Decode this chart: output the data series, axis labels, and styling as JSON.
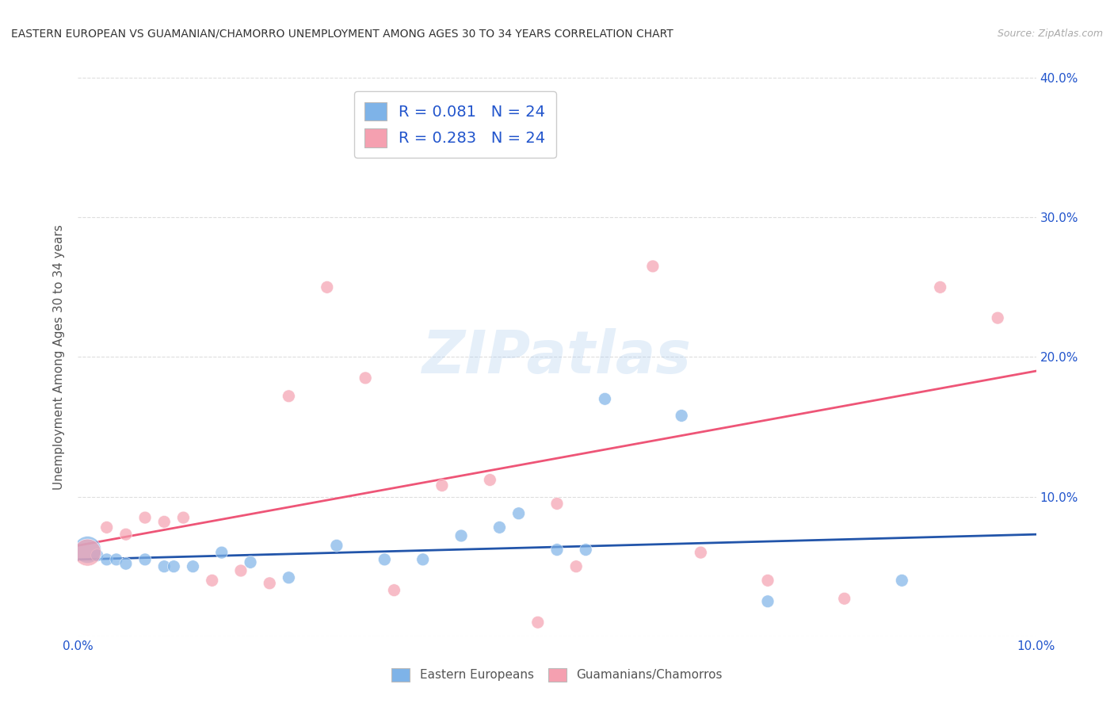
{
  "title": "EASTERN EUROPEAN VS GUAMANIAN/CHAMORRO UNEMPLOYMENT AMONG AGES 30 TO 34 YEARS CORRELATION CHART",
  "source": "Source: ZipAtlas.com",
  "ylabel": "Unemployment Among Ages 30 to 34 years",
  "xlim": [
    0.0,
    0.1
  ],
  "ylim": [
    0.0,
    0.4
  ],
  "xticks": [
    0.0,
    0.02,
    0.04,
    0.06,
    0.08,
    0.1
  ],
  "yticks": [
    0.0,
    0.1,
    0.2,
    0.3,
    0.4
  ],
  "xtick_labels": [
    "0.0%",
    "",
    "",
    "",
    "",
    "10.0%"
  ],
  "ytick_labels_right": [
    "",
    "10.0%",
    "20.0%",
    "30.0%",
    "40.0%"
  ],
  "blue_color": "#7EB3E8",
  "pink_color": "#F5A0B0",
  "blue_line_color": "#2255AA",
  "pink_line_color": "#EE5577",
  "legend_R_blue": "R = 0.081",
  "legend_N_blue": "N = 24",
  "legend_R_pink": "R = 0.283",
  "legend_N_pink": "N = 24",
  "legend_text_color": "#2255CC",
  "watermark": "ZIPatlas",
  "blue_scatter_x": [
    0.001,
    0.002,
    0.003,
    0.004,
    0.005,
    0.007,
    0.009,
    0.01,
    0.012,
    0.015,
    0.018,
    0.022,
    0.027,
    0.032,
    0.036,
    0.04,
    0.044,
    0.046,
    0.05,
    0.053,
    0.055,
    0.063,
    0.072,
    0.086
  ],
  "blue_scatter_y": [
    0.062,
    0.058,
    0.055,
    0.055,
    0.052,
    0.055,
    0.05,
    0.05,
    0.05,
    0.06,
    0.053,
    0.042,
    0.065,
    0.055,
    0.055,
    0.072,
    0.078,
    0.088,
    0.062,
    0.062,
    0.17,
    0.158,
    0.025,
    0.04
  ],
  "blue_scatter_size": [
    600,
    130,
    130,
    130,
    130,
    130,
    130,
    130,
    130,
    130,
    130,
    130,
    130,
    130,
    130,
    130,
    130,
    130,
    130,
    130,
    130,
    130,
    130,
    130
  ],
  "pink_scatter_x": [
    0.001,
    0.003,
    0.005,
    0.007,
    0.009,
    0.011,
    0.014,
    0.017,
    0.02,
    0.022,
    0.026,
    0.03,
    0.033,
    0.038,
    0.043,
    0.048,
    0.05,
    0.052,
    0.06,
    0.065,
    0.072,
    0.08,
    0.09,
    0.096
  ],
  "pink_scatter_y": [
    0.06,
    0.078,
    0.073,
    0.085,
    0.082,
    0.085,
    0.04,
    0.047,
    0.038,
    0.172,
    0.25,
    0.185,
    0.033,
    0.108,
    0.112,
    0.01,
    0.095,
    0.05,
    0.265,
    0.06,
    0.04,
    0.027,
    0.25,
    0.228
  ],
  "pink_scatter_size": [
    600,
    130,
    130,
    130,
    130,
    130,
    130,
    130,
    130,
    130,
    130,
    130,
    130,
    130,
    130,
    130,
    130,
    130,
    130,
    130,
    130,
    130,
    130,
    130
  ],
  "blue_trendline_x": [
    0.0,
    0.1
  ],
  "blue_trendline_y": [
    0.055,
    0.073
  ],
  "pink_trendline_x": [
    0.0,
    0.1
  ],
  "pink_trendline_y": [
    0.065,
    0.19
  ]
}
